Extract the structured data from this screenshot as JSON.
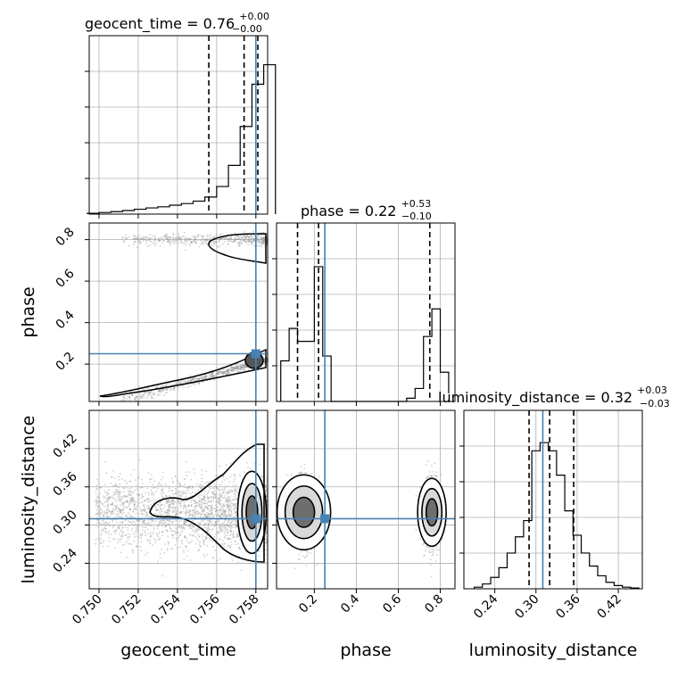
{
  "chart_data": {
    "type": "corner",
    "parameters": [
      "geocent_time",
      "phase",
      "luminosity_distance"
    ],
    "truths": {
      "geocent_time": 0.758,
      "phase": 0.25,
      "luminosity_distance": 0.31
    },
    "colors": {
      "truth": "#4682b4",
      "contour": "#000000",
      "grid": "#b0b0b0",
      "points": "#9a9a9a"
    },
    "panels": {
      "geocent_time_hist": {
        "title_main": "geocent_time = 0.76",
        "title_plus": "+0.00",
        "title_minus": "−0.00",
        "xlim": [
          0.7495,
          0.7586
        ],
        "xticks": [
          0.75,
          0.752,
          0.754,
          0.756,
          0.758
        ],
        "bins": [
          0.7494,
          0.75,
          0.7506,
          0.7512,
          0.7518,
          0.7524,
          0.753,
          0.7536,
          0.7542,
          0.7548,
          0.7554,
          0.756,
          0.7566,
          0.7572,
          0.7578,
          0.7584,
          0.759
        ],
        "counts": [
          0.005,
          0.01,
          0.015,
          0.022,
          0.03,
          0.038,
          0.045,
          0.055,
          0.065,
          0.08,
          0.105,
          0.17,
          0.3,
          0.54,
          0.8,
          0.92
        ],
        "quantiles": [
          0.7556,
          0.7574,
          0.7581
        ]
      },
      "phase_hist": {
        "title_main": "phase = 0.22",
        "title_plus": "+0.53",
        "title_minus": "−0.10",
        "xlim": [
          0.02,
          0.87
        ],
        "xticks": [
          0.2,
          0.4,
          0.6,
          0.8
        ],
        "bins": [
          0.04,
          0.08,
          0.12,
          0.16,
          0.2,
          0.24,
          0.28,
          0.32,
          0.36,
          0.4,
          0.44,
          0.48,
          0.52,
          0.56,
          0.6,
          0.64,
          0.68,
          0.72,
          0.76,
          0.8,
          0.84
        ],
        "counts": [
          0.25,
          0.45,
          0.37,
          0.37,
          0.83,
          0.28,
          0.0,
          0.0,
          0.0,
          0.0,
          0.0,
          0.0,
          0.0,
          0.0,
          0.0,
          0.02,
          0.08,
          0.4,
          0.57,
          0.18,
          0.05
        ],
        "quantiles": [
          0.12,
          0.22,
          0.75
        ]
      },
      "distance_hist": {
        "title_main": "luminosity_distance = 0.32",
        "title_plus": "+0.03",
        "title_minus": "−0.03",
        "xlim": [
          0.195,
          0.455
        ],
        "xticks": [
          0.24,
          0.3,
          0.36,
          0.42
        ],
        "bins": [
          0.21,
          0.222,
          0.234,
          0.246,
          0.258,
          0.27,
          0.282,
          0.294,
          0.306,
          0.318,
          0.33,
          0.342,
          0.354,
          0.366,
          0.378,
          0.39,
          0.402,
          0.414,
          0.426,
          0.438,
          0.45
        ],
        "counts": [
          0.01,
          0.03,
          0.07,
          0.13,
          0.22,
          0.32,
          0.42,
          0.85,
          0.9,
          0.85,
          0.7,
          0.48,
          0.33,
          0.22,
          0.14,
          0.08,
          0.04,
          0.02,
          0.01,
          0.005
        ],
        "quantiles": [
          0.29,
          0.32,
          0.355
        ]
      },
      "phase_vs_geocent": {
        "ylim": [
          0.02,
          0.88
        ],
        "yticks": [
          0.2,
          0.4,
          0.6,
          0.8
        ]
      },
      "distance_vs_geocent": {
        "ylim": [
          0.2,
          0.48
        ],
        "yticks": [
          0.24,
          0.3,
          0.36,
          0.42
        ]
      },
      "distance_vs_phase": {}
    },
    "axis_labels": {
      "x": [
        "geocent_time",
        "phase",
        "luminosity_distance"
      ],
      "y": [
        "phase",
        "luminosity_distance"
      ]
    }
  }
}
